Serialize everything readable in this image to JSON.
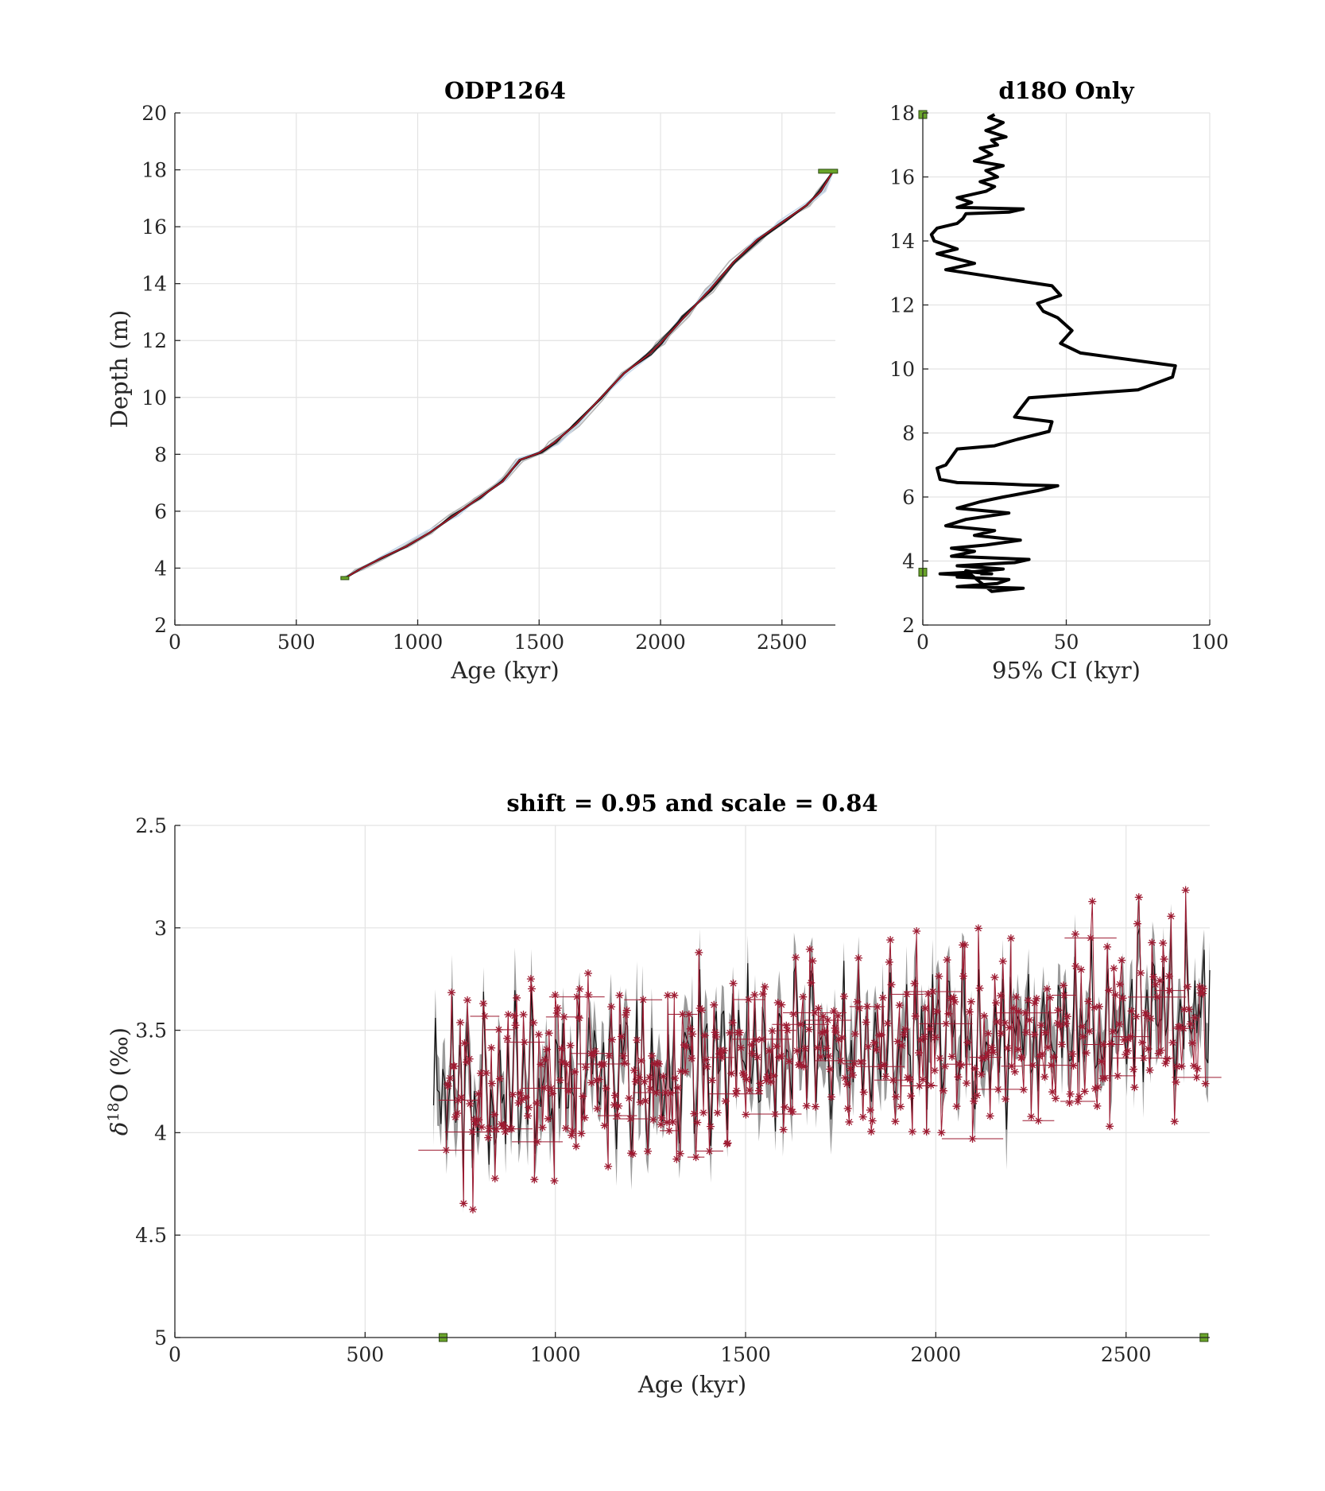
{
  "colors": {
    "background": "#ffffff",
    "grid": "#e3e3e3",
    "axis": "#262626",
    "median": "#111111",
    "age_model_red": "#c0182a",
    "ensemble_gray": "#b8b8b8",
    "ensemble_light": "#c8d8ea",
    "band_gray": "#9a9a9a",
    "data_points": "#9e1b32",
    "tie_point": "#6aa52a"
  },
  "chart_data": [
    {
      "id": "age-depth",
      "type": "line",
      "title": "ODP1264",
      "xlabel": "Age (kyr)",
      "ylabel": "Depth (m)",
      "xlim": [
        0,
        2720
      ],
      "ylim": [
        2,
        20
      ],
      "xticks": [
        0,
        500,
        1000,
        1500,
        2000,
        2500
      ],
      "yticks": [
        2,
        4,
        6,
        8,
        10,
        12,
        14,
        16,
        18,
        20
      ],
      "grid": true,
      "series": [
        {
          "role": "median",
          "x": [
            700,
            760,
            850,
            950,
            1050,
            1150,
            1250,
            1350,
            1420,
            1500,
            1560,
            1650,
            1750,
            1850,
            1950,
            2000,
            2100,
            2200,
            2300,
            2400,
            2500,
            2600,
            2660,
            2710
          ],
          "y": [
            3.65,
            3.95,
            4.35,
            4.75,
            5.25,
            5.85,
            6.45,
            7.05,
            7.8,
            8.05,
            8.4,
            9.05,
            9.95,
            10.85,
            11.5,
            11.9,
            12.85,
            13.75,
            14.75,
            15.55,
            16.15,
            16.75,
            17.25,
            17.95
          ]
        }
      ],
      "tie_points": [
        {
          "x": 700,
          "y": 3.65
        },
        {
          "x": 2700,
          "y": 17.95
        }
      ]
    },
    {
      "id": "ci-depth",
      "type": "line",
      "title": "d18O Only",
      "xlabel": "95% CI (kyr)",
      "ylabel": "",
      "xlim": [
        0,
        100
      ],
      "ylim": [
        2,
        18
      ],
      "xticks": [
        0,
        50,
        100
      ],
      "yticks": [
        2,
        4,
        6,
        8,
        10,
        12,
        14,
        16,
        18
      ],
      "grid": true,
      "series": [
        {
          "role": "ci",
          "x": [
            25,
            23,
            28,
            25,
            22,
            29,
            24,
            26,
            20,
            24,
            18,
            28,
            22,
            26,
            20,
            25,
            22,
            12,
            17,
            12,
            35,
            30,
            15,
            14,
            12,
            5,
            3,
            4,
            12,
            5,
            18,
            8,
            45,
            48,
            40,
            42,
            47,
            52,
            48,
            55,
            88,
            87,
            75,
            37,
            34,
            32,
            45,
            44,
            33,
            25,
            12,
            8,
            5,
            6,
            12,
            25,
            35,
            47,
            40,
            28,
            20,
            12,
            30,
            15,
            8,
            25,
            18,
            34,
            22,
            10,
            18,
            10,
            37,
            32,
            12,
            28,
            16,
            6,
            16,
            12,
            30,
            26,
            12,
            35,
            24,
            15,
            18,
            24,
            20
          ],
          "y": [
            17.95,
            17.85,
            17.7,
            17.55,
            17.45,
            17.25,
            17.15,
            17.0,
            16.9,
            16.7,
            16.5,
            16.35,
            16.2,
            16.0,
            15.85,
            15.7,
            15.55,
            15.35,
            15.2,
            15.05,
            15.0,
            14.9,
            14.85,
            14.7,
            14.55,
            14.4,
            14.2,
            14.0,
            13.75,
            13.6,
            13.3,
            13.1,
            12.6,
            12.3,
            12.05,
            11.8,
            11.6,
            11.2,
            10.8,
            10.5,
            10.1,
            9.75,
            9.35,
            9.1,
            8.75,
            8.5,
            8.35,
            8.05,
            7.8,
            7.6,
            7.5,
            7.0,
            6.9,
            6.55,
            6.45,
            6.42,
            6.38,
            6.35,
            6.2,
            6.0,
            5.85,
            5.65,
            5.5,
            5.3,
            5.1,
            4.95,
            4.8,
            4.65,
            4.5,
            4.4,
            4.3,
            4.15,
            4.05,
            3.95,
            3.85,
            3.75,
            3.65,
            3.6,
            3.55,
            3.5,
            3.42,
            3.3,
            3.2,
            3.15,
            3.05,
            3.7,
            3.65,
            3.6,
            3.6
          ]
        }
      ],
      "tie_points": [
        {
          "x": 0,
          "y": 17.95
        },
        {
          "x": 0,
          "y": 3.65
        }
      ]
    },
    {
      "id": "d18o-age",
      "type": "line",
      "title": "shift = 0.95 and scale = 0.84",
      "xlabel": "Age (kyr)",
      "ylabel_html": "δ18O (‰)",
      "xlim": [
        0,
        2720
      ],
      "ylim": [
        2.5,
        5
      ],
      "y_reversed": true,
      "xticks": [
        0,
        500,
        1000,
        1500,
        2000,
        2500
      ],
      "yticks": [
        2.5,
        3,
        3.5,
        4,
        4.5,
        5
      ],
      "ytick_labels": [
        "2.5",
        "3",
        "3.5",
        "4",
        "4.5",
        "5"
      ],
      "grid": true,
      "age_range": [
        680,
        2720
      ],
      "trend": {
        "start": 3.82,
        "end": 3.38,
        "amplitude": 0.33,
        "seed": 1264
      },
      "data_points_count": 520,
      "tie_points": [
        {
          "x": 705,
          "y": 5.0
        },
        {
          "x": 2705,
          "y": 5.0
        }
      ],
      "ylabel_parts": {
        "delta": "δ",
        "sup": "18",
        "rest": "O (‰)"
      }
    }
  ]
}
